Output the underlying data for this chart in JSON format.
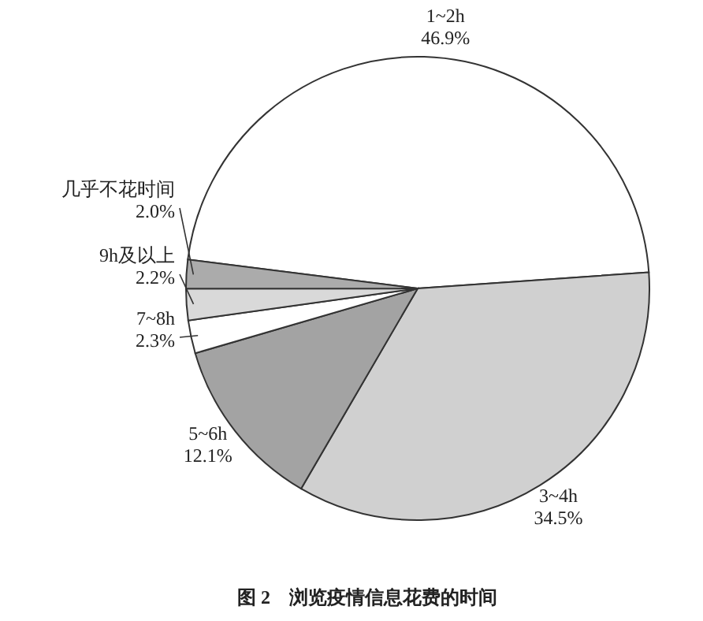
{
  "chart_data": {
    "type": "pie",
    "title": "图 2　浏览疫情信息花费的时间",
    "categories": [
      "1~2h",
      "3~4h",
      "5~6h",
      "7~8h",
      "9h及以上",
      "几乎不花时间"
    ],
    "values": [
      46.9,
      34.5,
      12.1,
      2.3,
      2.2,
      2.0
    ],
    "value_labels": [
      "46.9%",
      "34.5%",
      "12.1%",
      "2.3%",
      "2.2%",
      "2.0%"
    ],
    "colors": [
      "#ffffff",
      "#d0d0d0",
      "#a3a3a3",
      "#ffffff",
      "#d9d9d9",
      "#ababab"
    ]
  }
}
